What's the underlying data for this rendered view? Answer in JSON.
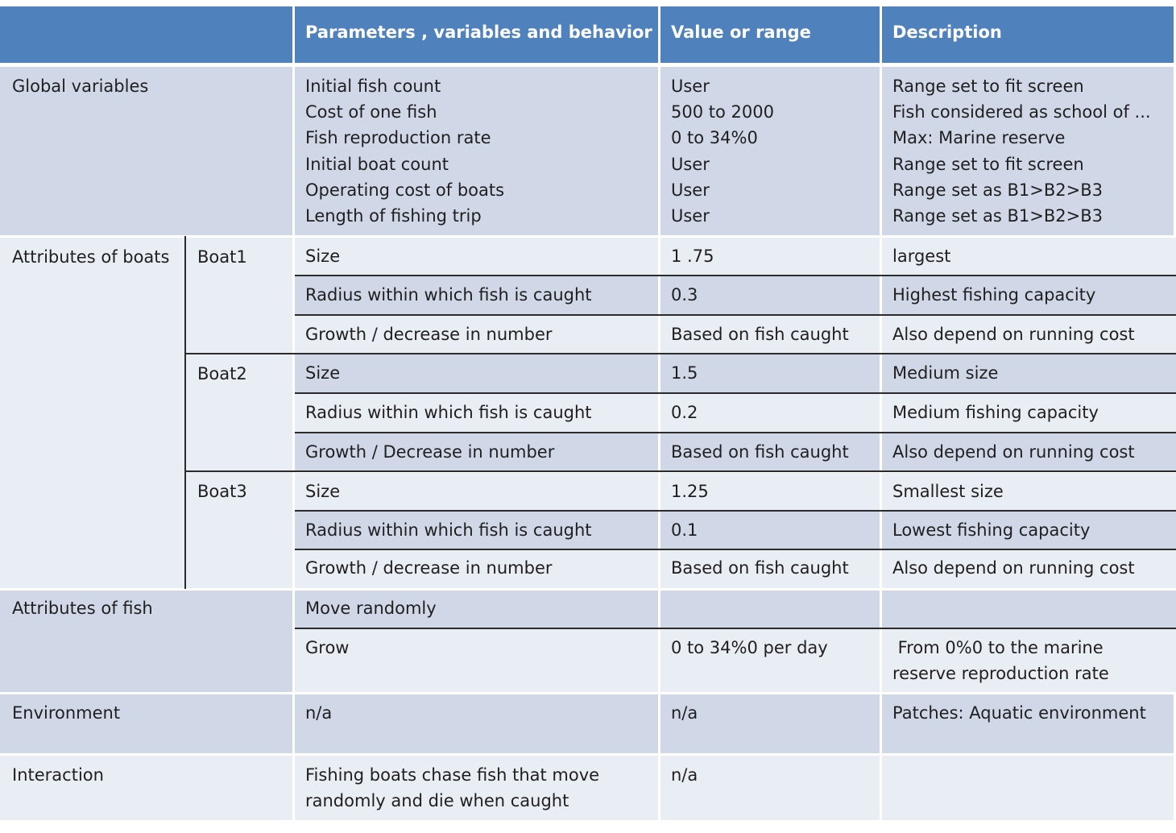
{
  "header": {
    "col1": "",
    "col2": "Parameters , variables and behavior",
    "col3": "Value or range",
    "col4": "Description"
  },
  "global": {
    "label": "Global variables",
    "params": [
      "Initial fish count",
      "Cost of one fish",
      "Fish reproduction rate",
      "Initial boat count",
      "Operating cost of boats",
      "Length of fishing trip"
    ],
    "values": [
      "User",
      "500 to 2000",
      "0 to 34%0",
      "User",
      "User",
      "User"
    ],
    "descs": [
      "Range set to fit screen",
      "Fish considered as school of ...",
      "Max: Marine reserve",
      "Range set to fit screen",
      "Range set as B1>B2>B3",
      "Range set as B1>B2>B3"
    ]
  },
  "boats": {
    "label": "Attributes of boats",
    "boat1": {
      "name": "Boat1",
      "rows": [
        {
          "param": "Size",
          "value": "1 .75",
          "desc": "largest"
        },
        {
          "param": "Radius within which fish is caught",
          "value": "0.3",
          "desc": "Highest  fishing capacity"
        },
        {
          "param": "Growth  /  decrease in number",
          "value": "Based on fish caught",
          "desc": "Also depend on running cost"
        }
      ]
    },
    "boat2": {
      "name": "Boat2",
      "rows": [
        {
          "param": "Size",
          "value": "1.5",
          "desc": "Medium size"
        },
        {
          "param": "Radius within which fish is caught",
          "value": "0.2",
          "desc": "Medium fishing capacity"
        },
        {
          "param": "Growth / Decrease in number",
          "value": "Based on fish caught",
          "desc": "Also depend on running cost"
        }
      ]
    },
    "boat3": {
      "name": "Boat3",
      "rows": [
        {
          "param": "Size",
          "value": "1.25",
          "desc": "Smallest size"
        },
        {
          "param": "Radius within which fish is caught",
          "value": "0.1",
          "desc": "Lowest fishing capacity"
        },
        {
          "param": "Growth  / decrease in number",
          "value": "Based on fish caught",
          "desc": "Also depend on running cost"
        }
      ]
    }
  },
  "fish": {
    "label": "Attributes of fish",
    "row1": {
      "param": "Move randomly",
      "value": "",
      "desc": ""
    },
    "row2": {
      "param": "Grow",
      "value": "0 to 34%0 per day",
      "desc_line1": " From 0%0 to the marine",
      "desc_line2": "reserve reproduction rate"
    }
  },
  "environment": {
    "label": "Environment",
    "param": "n/a",
    "value": "n/a",
    "desc": "Patches: Aquatic environment"
  },
  "interaction": {
    "label": "Interaction",
    "param_line1": "Fishing boats chase fish that move",
    "param_line2": "randomly and die when caught",
    "value": "n/a",
    "desc": ""
  }
}
